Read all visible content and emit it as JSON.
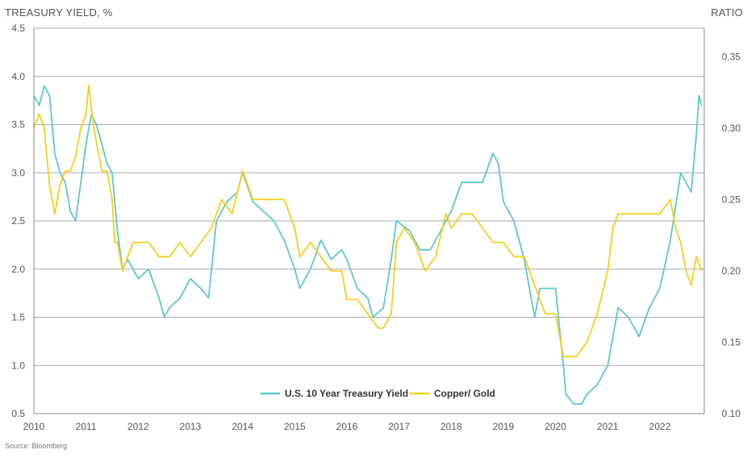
{
  "chart_data": {
    "type": "line",
    "left_axis_label": "TREASURY YIELD, %",
    "right_axis_label": "RATIO",
    "source": "Source: Bloomberg",
    "x_ticks": [
      "2010",
      "2011",
      "2012",
      "2013",
      "2014",
      "2015",
      "2016",
      "2017",
      "2018",
      "2019",
      "2020",
      "2021",
      "2022"
    ],
    "xlim": [
      2010.0,
      2022.85
    ],
    "ylim_left": [
      0.5,
      4.5
    ],
    "ylim_right": [
      0.1,
      0.37
    ],
    "y_ticks_left": [
      "0.5",
      "1.0",
      "1.5",
      "2.0",
      "2.5",
      "3.0",
      "3.5",
      "4.0",
      "4.5"
    ],
    "y_ticks_right": [
      "0.10",
      "0.15",
      "0.20",
      "0.25",
      "0.30",
      "0.35"
    ],
    "grid": "horizontal",
    "legend_position": "bottom-center",
    "series": [
      {
        "name": "U.S. 10 Year Treasury Yield",
        "axis": "left",
        "color": "#5ec8c8",
        "x": [
          2010.0,
          2010.1,
          2010.2,
          2010.3,
          2010.4,
          2010.5,
          2010.6,
          2010.7,
          2010.8,
          2010.9,
          2011.0,
          2011.1,
          2011.2,
          2011.3,
          2011.4,
          2011.5,
          2011.6,
          2011.7,
          2011.8,
          2011.9,
          2012.0,
          2012.2,
          2012.4,
          2012.5,
          2012.6,
          2012.8,
          2013.0,
          2013.2,
          2013.35,
          2013.5,
          2013.7,
          2013.9,
          2014.0,
          2014.2,
          2014.4,
          2014.6,
          2014.8,
          2015.0,
          2015.1,
          2015.3,
          2015.5,
          2015.7,
          2015.9,
          2016.0,
          2016.2,
          2016.4,
          2016.5,
          2016.7,
          2016.85,
          2016.95,
          2017.2,
          2017.4,
          2017.6,
          2017.8,
          2018.0,
          2018.2,
          2018.4,
          2018.6,
          2018.8,
          2018.9,
          2019.0,
          2019.2,
          2019.4,
          2019.6,
          2019.7,
          2019.9,
          2020.0,
          2020.15,
          2020.2,
          2020.35,
          2020.5,
          2020.6,
          2020.8,
          2021.0,
          2021.2,
          2021.4,
          2021.6,
          2021.8,
          2022.0,
          2022.2,
          2022.4,
          2022.5,
          2022.6,
          2022.7,
          2022.75,
          2022.8
        ],
        "values": [
          3.8,
          3.7,
          3.9,
          3.8,
          3.2,
          3.0,
          2.9,
          2.6,
          2.5,
          2.9,
          3.3,
          3.6,
          3.5,
          3.3,
          3.1,
          3.0,
          2.4,
          2.0,
          2.1,
          2.0,
          1.9,
          2.0,
          1.7,
          1.5,
          1.6,
          1.7,
          1.9,
          1.8,
          1.7,
          2.5,
          2.7,
          2.8,
          3.0,
          2.7,
          2.6,
          2.5,
          2.3,
          2.0,
          1.8,
          2.0,
          2.3,
          2.1,
          2.2,
          2.1,
          1.8,
          1.7,
          1.5,
          1.6,
          2.1,
          2.5,
          2.4,
          2.2,
          2.2,
          2.4,
          2.6,
          2.9,
          2.9,
          2.9,
          3.2,
          3.1,
          2.7,
          2.5,
          2.1,
          1.5,
          1.8,
          1.8,
          1.8,
          1.0,
          0.7,
          0.6,
          0.6,
          0.7,
          0.8,
          1.0,
          1.6,
          1.5,
          1.3,
          1.6,
          1.8,
          2.3,
          3.0,
          2.9,
          2.8,
          3.4,
          3.8,
          3.7
        ]
      },
      {
        "name": "Copper/ Gold",
        "axis": "right",
        "color": "#f5cf1a",
        "x": [
          2010.0,
          2010.1,
          2010.2,
          2010.3,
          2010.4,
          2010.5,
          2010.6,
          2010.7,
          2010.8,
          2010.9,
          2011.0,
          2011.05,
          2011.15,
          2011.3,
          2011.4,
          2011.5,
          2011.55,
          2011.6,
          2011.7,
          2011.8,
          2011.9,
          2012.0,
          2012.2,
          2012.4,
          2012.6,
          2012.8,
          2013.0,
          2013.2,
          2013.4,
          2013.6,
          2013.8,
          2014.0,
          2014.2,
          2014.4,
          2014.6,
          2014.8,
          2015.0,
          2015.1,
          2015.3,
          2015.5,
          2015.7,
          2015.9,
          2016.0,
          2016.2,
          2016.4,
          2016.6,
          2016.7,
          2016.85,
          2016.95,
          2017.1,
          2017.3,
          2017.5,
          2017.7,
          2017.9,
          2018.0,
          2018.2,
          2018.4,
          2018.6,
          2018.8,
          2019.0,
          2019.2,
          2019.4,
          2019.6,
          2019.8,
          2020.0,
          2020.15,
          2020.25,
          2020.4,
          2020.6,
          2020.8,
          2021.0,
          2021.1,
          2021.2,
          2021.4,
          2021.6,
          2021.8,
          2022.0,
          2022.2,
          2022.3,
          2022.4,
          2022.5,
          2022.6,
          2022.7,
          2022.8
        ],
        "values": [
          0.3,
          0.31,
          0.3,
          0.26,
          0.24,
          0.26,
          0.27,
          0.27,
          0.28,
          0.3,
          0.31,
          0.33,
          0.3,
          0.27,
          0.27,
          0.25,
          0.22,
          0.22,
          0.2,
          0.21,
          0.22,
          0.22,
          0.22,
          0.21,
          0.21,
          0.22,
          0.21,
          0.22,
          0.23,
          0.25,
          0.24,
          0.27,
          0.25,
          0.25,
          0.25,
          0.25,
          0.23,
          0.21,
          0.22,
          0.21,
          0.2,
          0.2,
          0.18,
          0.18,
          0.17,
          0.16,
          0.16,
          0.17,
          0.22,
          0.23,
          0.22,
          0.2,
          0.21,
          0.24,
          0.23,
          0.24,
          0.24,
          0.23,
          0.22,
          0.22,
          0.21,
          0.21,
          0.19,
          0.17,
          0.17,
          0.14,
          0.14,
          0.14,
          0.15,
          0.17,
          0.2,
          0.23,
          0.24,
          0.24,
          0.24,
          0.24,
          0.24,
          0.25,
          0.23,
          0.22,
          0.2,
          0.19,
          0.21,
          0.2
        ]
      }
    ]
  }
}
